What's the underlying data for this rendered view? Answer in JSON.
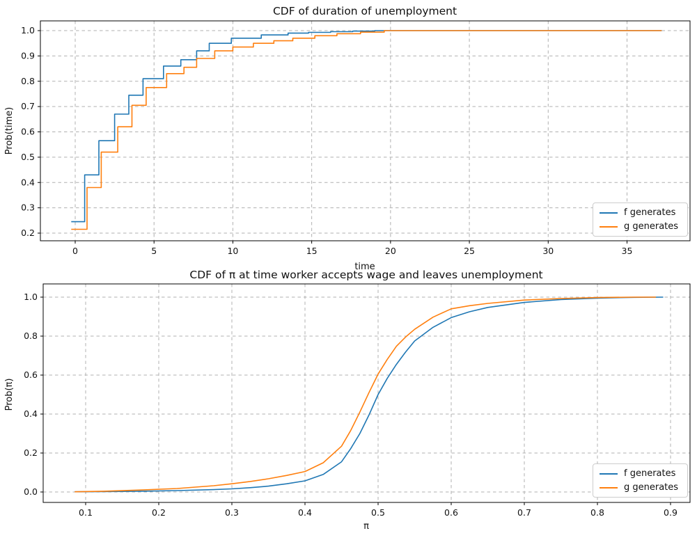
{
  "figure": {
    "background": "#ffffff",
    "grid_color": "#b0b0b0",
    "spine_color": "#000000"
  },
  "chart_data": [
    {
      "type": "step",
      "title": "CDF of duration of unemployment",
      "xlabel": "time",
      "ylabel": "Prob(time)",
      "xlim": [
        -2.2,
        39.0
      ],
      "ylim": [
        0.17,
        1.04
      ],
      "grid": "dashed",
      "legend_position": "lower right",
      "xticks": [
        {
          "v": 0,
          "label": "0"
        },
        {
          "v": 5,
          "label": "5"
        },
        {
          "v": 10,
          "label": "10"
        },
        {
          "v": 15,
          "label": "15"
        },
        {
          "v": 20,
          "label": "20"
        },
        {
          "v": 25,
          "label": "25"
        },
        {
          "v": 30,
          "label": "30"
        },
        {
          "v": 35,
          "label": "35"
        }
      ],
      "yticks": [
        {
          "v": 0.2,
          "label": "0.2"
        },
        {
          "v": 0.3,
          "label": "0.3"
        },
        {
          "v": 0.4,
          "label": "0.4"
        },
        {
          "v": 0.5,
          "label": "0.5"
        },
        {
          "v": 0.6,
          "label": "0.6"
        },
        {
          "v": 0.7,
          "label": "0.7"
        },
        {
          "v": 0.8,
          "label": "0.8"
        },
        {
          "v": 0.9,
          "label": "0.9"
        },
        {
          "v": 1.0,
          "label": "1.0"
        }
      ],
      "series": [
        {
          "name": "f generates",
          "color": "#1f77b4",
          "x": [
            -0.25,
            0.6,
            1.5,
            2.5,
            3.4,
            4.3,
            5.6,
            6.7,
            7.7,
            8.5,
            9.9,
            11.8,
            13.5,
            14.8,
            16.2,
            17.6,
            19.0,
            37.2
          ],
          "y": [
            0.245,
            0.43,
            0.565,
            0.67,
            0.745,
            0.81,
            0.86,
            0.885,
            0.92,
            0.95,
            0.97,
            0.983,
            0.99,
            0.993,
            0.996,
            0.998,
            1.0,
            1.0
          ]
        },
        {
          "name": "g generates",
          "color": "#ff7f0e",
          "x": [
            -0.25,
            0.75,
            1.65,
            2.7,
            3.6,
            4.5,
            5.8,
            6.9,
            7.7,
            8.85,
            10.0,
            11.3,
            12.6,
            13.8,
            15.2,
            16.6,
            18.1,
            19.6,
            37.2
          ],
          "y": [
            0.215,
            0.38,
            0.52,
            0.62,
            0.705,
            0.775,
            0.83,
            0.855,
            0.89,
            0.92,
            0.935,
            0.95,
            0.96,
            0.97,
            0.98,
            0.988,
            0.994,
            1.0,
            1.0
          ]
        }
      ]
    },
    {
      "type": "line",
      "title": "CDF of π at time worker accepts wage and leaves unemployment",
      "xlabel": "π",
      "ylabel": "Prob(π)",
      "xlim": [
        0.042,
        0.927
      ],
      "ylim": [
        -0.054,
        1.068
      ],
      "grid": "dashed",
      "legend_position": "lower right",
      "xticks": [
        {
          "v": 0.1,
          "label": "0.1"
        },
        {
          "v": 0.2,
          "label": "0.2"
        },
        {
          "v": 0.3,
          "label": "0.3"
        },
        {
          "v": 0.4,
          "label": "0.4"
        },
        {
          "v": 0.5,
          "label": "0.5"
        },
        {
          "v": 0.6,
          "label": "0.6"
        },
        {
          "v": 0.7,
          "label": "0.7"
        },
        {
          "v": 0.8,
          "label": "0.8"
        },
        {
          "v": 0.9,
          "label": "0.9"
        }
      ],
      "yticks": [
        {
          "v": 0.0,
          "label": "0.0"
        },
        {
          "v": 0.2,
          "label": "0.2"
        },
        {
          "v": 0.4,
          "label": "0.4"
        },
        {
          "v": 0.6,
          "label": "0.6"
        },
        {
          "v": 0.8,
          "label": "0.8"
        },
        {
          "v": 1.0,
          "label": "1.0"
        }
      ],
      "series": [
        {
          "name": "f generates",
          "color": "#1f77b4",
          "x": [
            0.085,
            0.125,
            0.175,
            0.225,
            0.275,
            0.3,
            0.325,
            0.35,
            0.375,
            0.4,
            0.425,
            0.45,
            0.4625,
            0.475,
            0.4875,
            0.5,
            0.5125,
            0.525,
            0.5375,
            0.55,
            0.575,
            0.6,
            0.625,
            0.65,
            0.7,
            0.75,
            0.8,
            0.85,
            0.89
          ],
          "y": [
            0.001,
            0.002,
            0.004,
            0.007,
            0.012,
            0.016,
            0.022,
            0.03,
            0.042,
            0.057,
            0.09,
            0.155,
            0.222,
            0.3,
            0.395,
            0.5,
            0.583,
            0.655,
            0.718,
            0.775,
            0.845,
            0.895,
            0.925,
            0.947,
            0.973,
            0.988,
            0.995,
            0.999,
            1.0
          ]
        },
        {
          "name": "g generates",
          "color": "#ff7f0e",
          "x": [
            0.085,
            0.125,
            0.175,
            0.225,
            0.275,
            0.3,
            0.325,
            0.35,
            0.375,
            0.4,
            0.425,
            0.45,
            0.4625,
            0.475,
            0.4875,
            0.5,
            0.5125,
            0.525,
            0.5375,
            0.55,
            0.575,
            0.6,
            0.625,
            0.65,
            0.7,
            0.75,
            0.8,
            0.85,
            0.88
          ],
          "y": [
            0.001,
            0.004,
            0.01,
            0.018,
            0.032,
            0.042,
            0.054,
            0.068,
            0.085,
            0.105,
            0.15,
            0.235,
            0.315,
            0.41,
            0.51,
            0.605,
            0.68,
            0.748,
            0.795,
            0.835,
            0.897,
            0.94,
            0.956,
            0.968,
            0.985,
            0.993,
            0.998,
            1.0,
            1.0
          ]
        }
      ]
    }
  ]
}
